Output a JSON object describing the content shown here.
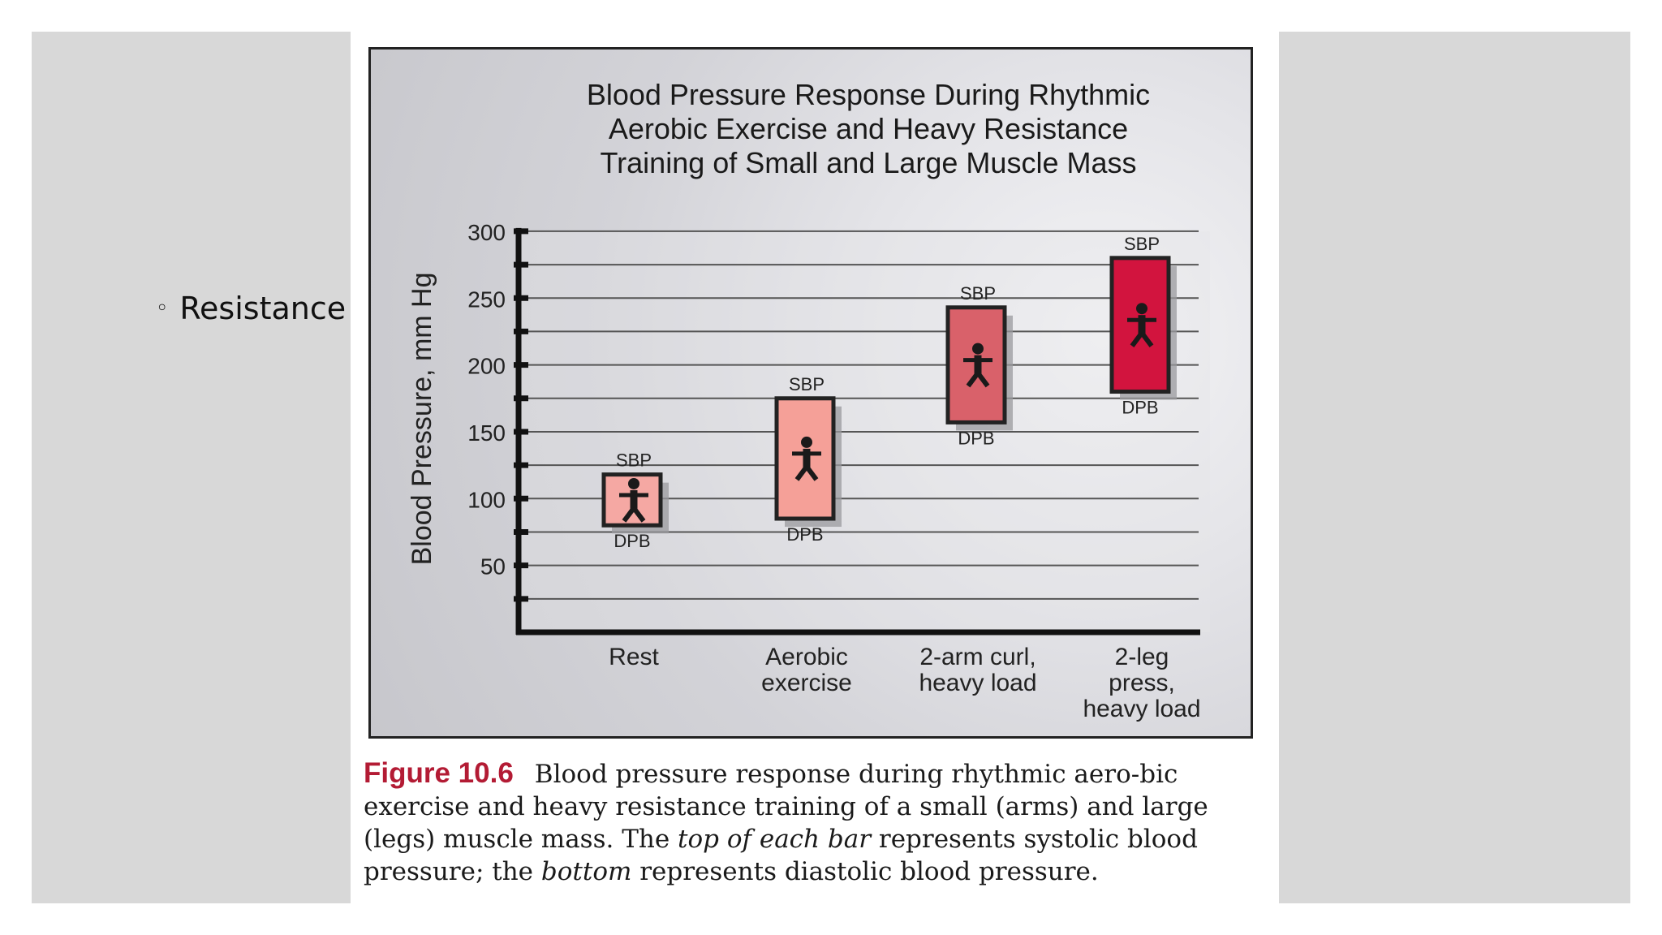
{
  "slide": {
    "bullet_symbol": "◦",
    "bullet_text": "Resistance E"
  },
  "chart_data": {
    "type": "bar",
    "subtype": "floating-range",
    "title_lines": [
      "Blood Pressure Response During Rhythmic",
      "Aerobic Exercise and Heavy Resistance",
      "Training of Small and Large Muscle Mass"
    ],
    "ylabel": "Blood Pressure, mm Hg",
    "ylim": [
      0,
      300
    ],
    "yticks": [
      50,
      100,
      150,
      200,
      250,
      300
    ],
    "grid": true,
    "categories": [
      {
        "label_lines": [
          "Rest"
        ],
        "sbp": 118,
        "dbp": 80,
        "color": "#f5a8a3",
        "icon": "reclining-person-icon"
      },
      {
        "label_lines": [
          "Aerobic",
          "exercise"
        ],
        "sbp": 175,
        "dbp": 85,
        "color": "#f5a098",
        "icon": "runner-icon"
      },
      {
        "label_lines": [
          "2-arm curl,",
          "heavy load"
        ],
        "sbp": 243,
        "dbp": 157,
        "color": "#d9616a",
        "icon": "arm-curl-icon"
      },
      {
        "label_lines": [
          "2-leg",
          "press,",
          "heavy load"
        ],
        "sbp": 280,
        "dbp": 180,
        "color": "#d2143e",
        "icon": "leg-press-icon"
      }
    ],
    "top_label": "SBP",
    "bottom_label": "DPB"
  },
  "caption": {
    "figure_label": "Figure 10.6",
    "part1": "Blood pressure response during rhythmic aero-bic exercise and heavy resistance training of a small (arms) and large (legs) muscle mass. The ",
    "italic1": "top of each bar",
    "part2": " represents systolic blood pressure; the ",
    "italic2": "bottom",
    "part3": " represents diastolic blood pressure."
  }
}
